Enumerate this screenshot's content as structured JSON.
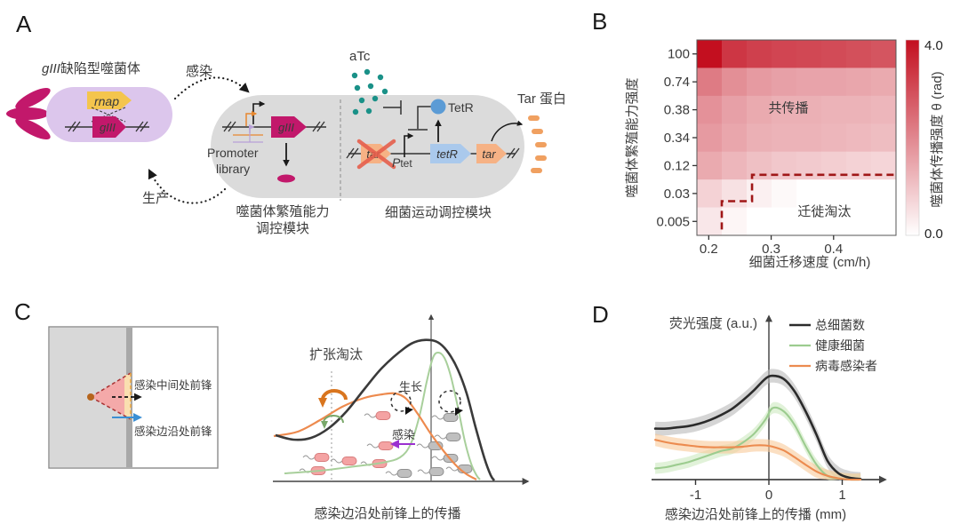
{
  "panels": {
    "a": {
      "letter": "A",
      "phage_title_gene": "gIII",
      "phage_title_rest": "缺陷型噬菌体",
      "infect_label": "感染",
      "produce_label": "生产",
      "rnap_label": "rnap",
      "giii_label": "gIII",
      "promoter_line1": "Promoter",
      "promoter_line2": "library",
      "module1_line1": "噬菌体繁殖能力",
      "module1_line2": "调控模块",
      "atc_label": "aTc",
      "tetr_protein_label": "TetR",
      "tar_crossed_label": "tar",
      "ptet_p": "P",
      "ptet_sub": "tet",
      "tetr_gene_label": "tetR",
      "tar_gene_label": "tar",
      "tar_protein_label": "Tar 蛋白",
      "module2": "细菌运动调控模块"
    },
    "b": {
      "letter": "B"
    },
    "c": {
      "letter": "C",
      "mid_front_label": "感染中间处前锋",
      "edge_front_label": "感染边沿处前锋",
      "expansion_label": "扩张淘汰",
      "growth_label": "生长",
      "infection_label": "感染",
      "caption": "感染边沿处前锋上的传播"
    },
    "d": {
      "letter": "D"
    }
  },
  "colors": {
    "phage_body": "#dcc6ec",
    "phage_fiber": "#c2186b",
    "rnap_fill": "#f4c54d",
    "gene_magenta": "#c2186b",
    "cell_gray": "#dbdbdb",
    "atc_teal": "#1a9188",
    "tetr_blue": "#5b9bd5",
    "tetr_gene_blue": "#aac9ec",
    "tar_orange": "#f6b285",
    "membrane_dash_orange": "#f0a060",
    "cross_red": "#e65f4d",
    "heat_high": "#c30f1f",
    "heat_low": "#ffffff",
    "boundary_red": "#a01818",
    "infected_pink": "#f4a3a3",
    "healthy_cell_gray": "#bfbfbf",
    "blue_arrow": "#3b8fd4",
    "purple_arrow": "#9b30d0"
  },
  "chart_data": [
    {
      "id": "cospreading_heatmap",
      "type": "heatmap",
      "xlabel": "细菌迁移速度 (cm/h)",
      "ylabel": "噬菌体繁殖能力强度",
      "colorbar_label": "噬菌体传播强度 θ (rad)",
      "colorbar_ticks": [
        "4.0",
        "0.0"
      ],
      "colorbar_range": [
        0,
        4
      ],
      "x_ticks": [
        0.2,
        0.3,
        0.4
      ],
      "xlim": [
        0.181,
        0.5
      ],
      "y_categories": [
        "100",
        "0.74",
        "0.38",
        "0.34",
        "0.12",
        "0.03",
        "0.005"
      ],
      "values": [
        [
          4.0,
          3.2,
          3.0,
          2.9,
          2.85,
          2.8,
          2.7,
          2.6
        ],
        [
          1.9,
          1.55,
          1.35,
          1.25,
          1.2,
          1.2,
          1.15,
          1.1
        ],
        [
          1.5,
          1.25,
          1.1,
          1.0,
          1.0,
          0.95,
          0.95,
          0.9
        ],
        [
          1.35,
          1.15,
          1.0,
          0.95,
          0.95,
          0.9,
          0.85,
          0.8
        ],
        [
          1.1,
          0.9,
          0.75,
          0.65,
          0.6,
          0.55,
          0.5,
          0.45
        ],
        [
          0.5,
          0.3,
          0.12,
          0.04,
          0.0,
          0.0,
          0.0,
          0.0
        ],
        [
          0.22,
          0.07,
          0.0,
          0.0,
          0.0,
          0.0,
          0.0,
          0.0
        ]
      ],
      "annotations": [
        {
          "text": "共传播",
          "x": 0.46,
          "y": 0.37
        },
        {
          "text": "迁徙淘汰",
          "x": 0.64,
          "y": 0.9
        }
      ],
      "boundary": [
        [
          0.125,
          0.97
        ],
        [
          0.125,
          0.825
        ],
        [
          0.277,
          0.825
        ],
        [
          0.277,
          0.69
        ],
        [
          1.0,
          0.69
        ]
      ],
      "grid": false,
      "legend_position": "right-colorbar"
    },
    {
      "id": "fluorescence_profile",
      "type": "line",
      "ylabel": "荧光强度 (a.u.)",
      "xlabel": "感染边沿处前锋上的传播 (mm)",
      "x_ticks": [
        -1,
        0,
        1
      ],
      "xlim": [
        -1.55,
        1.3
      ],
      "ylim": [
        0,
        1
      ],
      "grid": false,
      "legend_position": "upper right",
      "x": [
        -1.55,
        -1.4,
        -1.25,
        -1.1,
        -0.95,
        -0.8,
        -0.65,
        -0.5,
        -0.35,
        -0.2,
        -0.05,
        0.05,
        0.2,
        0.35,
        0.5,
        0.65,
        0.8,
        0.95,
        1.1,
        1.25
      ],
      "series": [
        {
          "name": "总细菌数",
          "color": "#2b2b2b",
          "band_color": "#b9b9b9",
          "band": 0.055,
          "values": [
            0.41,
            0.41,
            0.42,
            0.43,
            0.45,
            0.48,
            0.52,
            0.57,
            0.64,
            0.72,
            0.81,
            0.835,
            0.81,
            0.71,
            0.55,
            0.36,
            0.15,
            0.05,
            0.015,
            0.005
          ]
        },
        {
          "name": "健康细菌",
          "color": "#9ccc8f",
          "band_color": "#cdeabf",
          "band": 0.045,
          "values": [
            0.09,
            0.1,
            0.12,
            0.14,
            0.17,
            0.2,
            0.23,
            0.25,
            0.3,
            0.37,
            0.48,
            0.575,
            0.55,
            0.44,
            0.27,
            0.12,
            0.03,
            0.01,
            0.0,
            0.0
          ]
        },
        {
          "name": "病毒感染者",
          "color": "#ec8b4f",
          "band_color": "#f8c99a",
          "band": 0.05,
          "values": [
            0.32,
            0.3,
            0.285,
            0.275,
            0.265,
            0.26,
            0.26,
            0.26,
            0.265,
            0.275,
            0.275,
            0.265,
            0.235,
            0.18,
            0.12,
            0.065,
            0.03,
            0.01,
            0.0,
            0.0
          ]
        }
      ]
    }
  ]
}
